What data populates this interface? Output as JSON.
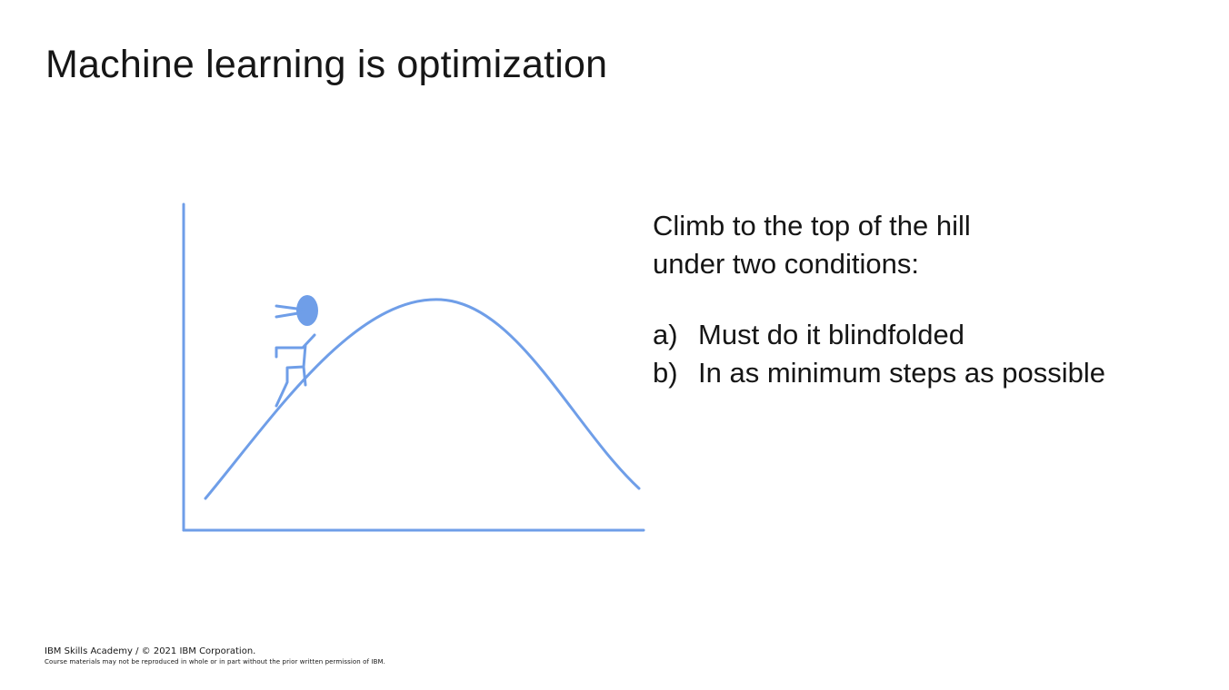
{
  "slide": {
    "title": "Machine learning is optimization",
    "accent_color": "#6f9ee8"
  },
  "description": {
    "lines": [
      "Climb to the top of the hill",
      "under two conditions:"
    ],
    "conditions": [
      {
        "marker": "a)",
        "text": "Must do it blindfolded"
      },
      {
        "marker": "b)",
        "text": "In as minimum steps as possible"
      }
    ]
  },
  "diagram": {
    "figure_icon": "stick-figure-climber-icon",
    "curve": "hill-curve"
  },
  "footer": {
    "copyright": "IBM Skills Academy / © 2021 IBM Corporation.",
    "notice": "Course materials may not be reproduced in whole or in part without the prior written permission of IBM."
  }
}
